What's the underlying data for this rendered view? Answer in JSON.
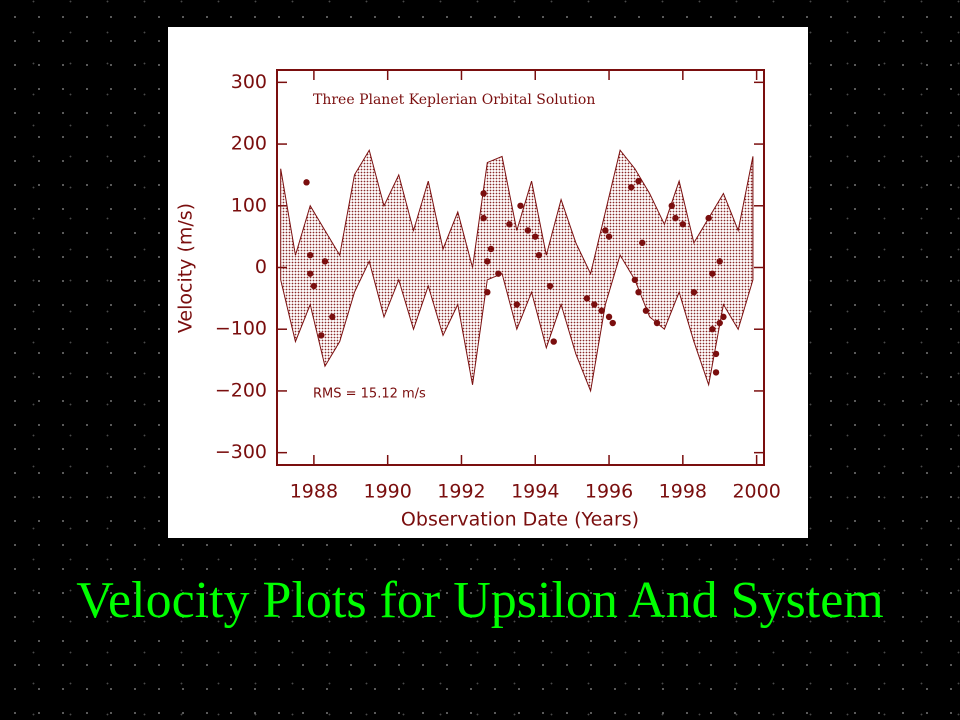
{
  "slide_title": "Velocity Plots for Upsilon And System",
  "chart_data": {
    "type": "scatter",
    "annotations": [
      "Three Planet Keplerian Orbital Solution",
      "RMS = 15.12 m/s"
    ],
    "x_label": "Observation Date (Years)",
    "y_label": "Velocity  (m/s)",
    "color": "#7a0e0e",
    "xlim": [
      1987,
      2000.2
    ],
    "xticks": [
      1988,
      1990,
      1992,
      1994,
      1996,
      1998,
      2000
    ],
    "ylim": [
      -320,
      320
    ],
    "yticks": [
      {
        "value": -300,
        "label": "−300"
      },
      {
        "value": -200,
        "label": "−200"
      },
      {
        "value": -100,
        "label": "−100"
      },
      0,
      100,
      200,
      300
    ],
    "model_band": {
      "x": [
        1987.1,
        1987.5,
        1987.9,
        1988.3,
        1988.7,
        1989.1,
        1989.5,
        1989.9,
        1990.3,
        1990.7,
        1991.1,
        1991.5,
        1991.9,
        1992.3,
        1992.7,
        1993.1,
        1993.5,
        1993.9,
        1994.3,
        1994.7,
        1995.1,
        1995.5,
        1995.9,
        1996.3,
        1996.7,
        1997.1,
        1997.5,
        1997.9,
        1998.3,
        1998.7,
        1999.1,
        1999.5,
        1999.9
      ],
      "upper": [
        160,
        20,
        100,
        60,
        20,
        150,
        190,
        100,
        150,
        60,
        140,
        30,
        90,
        0,
        170,
        180,
        60,
        140,
        20,
        110,
        40,
        -10,
        90,
        190,
        160,
        120,
        70,
        140,
        40,
        80,
        120,
        60,
        180
      ],
      "lower": [
        -20,
        -120,
        -60,
        -160,
        -120,
        -40,
        10,
        -80,
        -20,
        -100,
        -30,
        -110,
        -60,
        -190,
        -20,
        -10,
        -100,
        -40,
        -130,
        -60,
        -140,
        -200,
        -60,
        20,
        -20,
        -80,
        -100,
        -40,
        -120,
        -190,
        -60,
        -100,
        -20
      ]
    },
    "x": [
      1987.8,
      1987.9,
      1987.9,
      1988.0,
      1988.2,
      1988.3,
      1988.5,
      1992.6,
      1992.6,
      1992.7,
      1992.7,
      1992.8,
      1993.0,
      1993.3,
      1993.5,
      1993.6,
      1993.8,
      1994.0,
      1994.1,
      1994.4,
      1994.5,
      1995.4,
      1995.6,
      1995.8,
      1995.9,
      1996.0,
      1996.0,
      1996.1,
      1996.6,
      1996.8,
      1996.9,
      1996.7,
      1996.8,
      1997.0,
      1997.3,
      1997.7,
      1997.8,
      1998.0,
      1998.3,
      1998.7,
      1998.8,
      1998.8,
      1998.9,
      1998.9,
      1999.0,
      1999.1,
      1999.0
    ],
    "values": [
      138,
      20,
      -10,
      -30,
      -110,
      10,
      -80,
      120,
      80,
      10,
      -40,
      30,
      -10,
      70,
      -60,
      100,
      60,
      50,
      20,
      -30,
      -120,
      -50,
      -60,
      -70,
      60,
      50,
      -80,
      -90,
      130,
      140,
      40,
      -20,
      -40,
      -70,
      -90,
      100,
      80,
      70,
      -40,
      80,
      -10,
      -100,
      -140,
      -170,
      -90,
      -80,
      10
    ]
  }
}
